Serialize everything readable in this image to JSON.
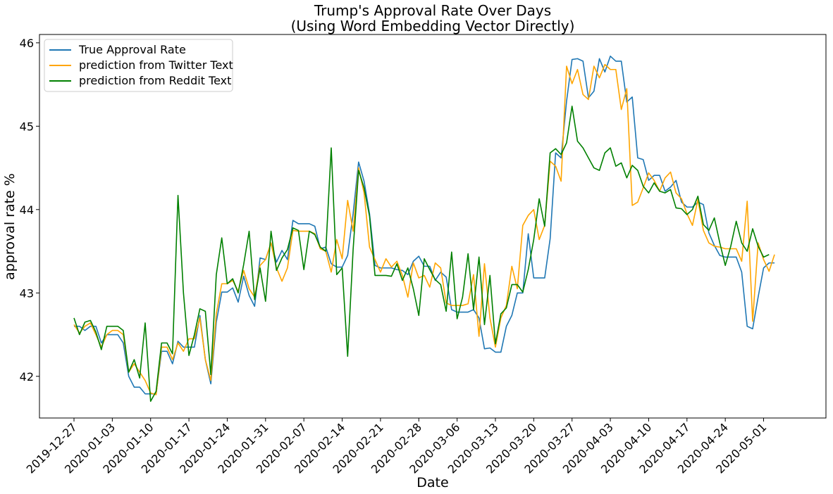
{
  "chart_data": {
    "type": "line",
    "title": "Trump's Approval Rate Over Days",
    "subtitle": "(Using Word Embedding Vector Directly)",
    "xlabel": "Date",
    "ylabel": "approval rate %",
    "ylim": [
      41.5,
      46.1
    ],
    "yticks": [
      42,
      43,
      44,
      45,
      46
    ],
    "x_start": "2019-12-27",
    "xtick_labels": [
      "2019-12-27",
      "2020-01-03",
      "2020-01-10",
      "2020-01-17",
      "2020-01-24",
      "2020-01-31",
      "2020-02-07",
      "2020-02-14",
      "2020-02-21",
      "2020-02-28",
      "2020-03-06",
      "2020-03-13",
      "2020-03-20",
      "2020-03-27",
      "2020-04-03",
      "2020-04-10",
      "2020-04-17",
      "2020-04-24",
      "2020-05-01"
    ],
    "legend_position": "upper-left",
    "grid": false,
    "series": [
      {
        "name": "True Approval Rate",
        "color": "#1f77b4",
        "values": [
          42.6,
          42.6,
          42.55,
          42.6,
          42.6,
          42.4,
          42.5,
          42.5,
          42.5,
          42.4,
          42.0,
          41.87,
          41.87,
          41.79,
          41.79,
          41.79,
          42.3,
          42.3,
          42.15,
          42.42,
          42.35,
          42.35,
          42.35,
          42.73,
          42.2,
          41.91,
          42.65,
          43.01,
          43.01,
          43.06,
          42.89,
          43.2,
          42.97,
          42.84,
          43.42,
          43.4,
          43.6,
          43.37,
          43.51,
          43.4,
          43.87,
          43.83,
          43.83,
          43.83,
          43.8,
          43.53,
          43.55,
          43.35,
          43.31,
          43.31,
          43.45,
          43.95,
          44.57,
          44.34,
          43.95,
          43.33,
          43.3,
          43.3,
          43.3,
          43.28,
          43.27,
          43.22,
          43.38,
          43.44,
          43.32,
          43.32,
          43.15,
          43.25,
          43.19,
          42.8,
          42.77,
          42.77,
          42.77,
          42.8,
          42.7,
          42.33,
          42.34,
          42.29,
          42.29,
          42.6,
          42.73,
          43.0,
          43.0,
          43.71,
          43.18,
          43.18,
          43.18,
          43.65,
          44.68,
          44.62,
          45.3,
          45.8,
          45.81,
          45.78,
          45.34,
          45.42,
          45.81,
          45.65,
          45.84,
          45.78,
          45.78,
          45.29,
          45.35,
          44.62,
          44.6,
          44.35,
          44.41,
          44.41,
          44.22,
          44.27,
          44.35,
          44.09,
          44.03,
          44.03,
          44.09,
          44.06,
          43.72,
          43.57,
          43.45,
          43.43,
          43.43,
          43.43,
          43.25,
          42.6,
          42.57,
          42.95,
          43.3,
          43.36,
          43.36
        ]
      },
      {
        "name": "prediction from Twitter Text",
        "color": "#ffa500",
        "values": [
          42.62,
          42.52,
          42.6,
          42.64,
          42.5,
          42.35,
          42.5,
          42.55,
          42.55,
          42.5,
          42.05,
          42.15,
          42.05,
          41.95,
          41.8,
          41.78,
          42.35,
          42.35,
          42.2,
          42.4,
          42.3,
          42.45,
          42.45,
          42.7,
          42.2,
          41.95,
          42.75,
          43.11,
          43.11,
          43.15,
          43.02,
          43.27,
          43.05,
          42.95,
          43.33,
          43.4,
          43.6,
          43.3,
          43.14,
          43.3,
          43.75,
          43.74,
          43.74,
          43.74,
          43.71,
          43.53,
          43.5,
          43.25,
          43.64,
          43.41,
          44.11,
          43.74,
          44.5,
          44.2,
          43.55,
          43.4,
          43.25,
          43.41,
          43.31,
          43.38,
          43.21,
          42.95,
          43.36,
          43.18,
          43.21,
          43.07,
          43.36,
          43.3,
          42.88,
          42.85,
          42.85,
          42.85,
          42.87,
          43.22,
          42.48,
          43.35,
          42.7,
          42.35,
          42.7,
          42.85,
          43.32,
          43.05,
          43.81,
          43.93,
          44.0,
          43.64,
          43.81,
          44.58,
          44.52,
          44.34,
          45.72,
          45.51,
          45.68,
          45.38,
          45.32,
          45.72,
          45.58,
          45.74,
          45.68,
          45.68,
          45.2,
          45.45,
          44.05,
          44.09,
          44.26,
          44.44,
          44.35,
          44.22,
          44.38,
          44.45,
          44.2,
          44.13,
          43.95,
          43.81,
          44.12,
          43.75,
          43.6,
          43.56,
          43.55,
          43.53,
          43.53,
          43.53,
          43.38,
          44.1,
          42.66,
          43.6,
          43.4,
          43.26,
          43.46
        ]
      },
      {
        "name": "prediction from Reddit Text",
        "color": "#008000",
        "values": [
          42.7,
          42.5,
          42.65,
          42.67,
          42.53,
          42.32,
          42.6,
          42.6,
          42.6,
          42.55,
          42.05,
          42.2,
          41.98,
          42.64,
          41.7,
          41.82,
          42.4,
          42.4,
          42.27,
          44.17,
          43.0,
          42.25,
          42.5,
          42.81,
          42.78,
          42.02,
          43.22,
          43.66,
          43.11,
          43.17,
          43.0,
          43.34,
          43.74,
          42.92,
          43.3,
          42.9,
          43.74,
          43.27,
          43.42,
          43.52,
          43.78,
          43.75,
          43.28,
          43.74,
          43.7,
          43.55,
          43.5,
          44.74,
          43.22,
          43.3,
          42.24,
          43.52,
          44.47,
          44.26,
          43.92,
          43.21,
          43.21,
          43.21,
          43.2,
          43.35,
          43.15,
          43.3,
          43.05,
          42.73,
          43.41,
          43.28,
          43.16,
          43.1,
          42.78,
          43.49,
          42.69,
          42.95,
          43.47,
          42.8,
          43.43,
          42.62,
          43.21,
          42.39,
          42.75,
          42.82,
          43.1,
          43.1,
          43.01,
          43.28,
          43.64,
          44.13,
          43.8,
          44.68,
          44.73,
          44.66,
          44.8,
          45.24,
          44.82,
          44.74,
          44.62,
          44.5,
          44.47,
          44.68,
          44.74,
          44.52,
          44.56,
          44.38,
          44.53,
          44.47,
          44.28,
          44.2,
          44.32,
          44.22,
          44.2,
          44.24,
          44.02,
          44.01,
          43.94,
          44.0,
          44.16,
          43.82,
          43.75,
          43.9,
          43.6,
          43.33,
          43.56,
          43.86,
          43.6,
          43.5,
          43.77,
          43.56,
          43.43,
          43.46
        ]
      }
    ]
  }
}
